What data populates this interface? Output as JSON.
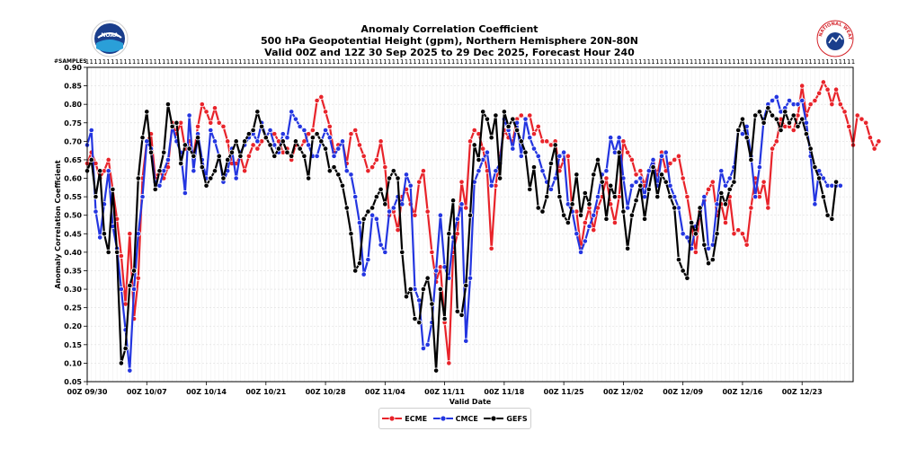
{
  "header": {
    "title_line1": "Anomaly Correlation Coefficient",
    "title_line2": "500 hPa Geopotential Height (gpm), Northern Hemisphere 20N-80N",
    "title_line3": "Valid 00Z and 12Z 30 Sep 2025 to 29 Dec 2025, Forecast Hour 240",
    "left_logo_text": "NOAA",
    "right_logo_text": "NATIONAL WEATHER SERVICE"
  },
  "chart_data": {
    "type": "line",
    "title": "Anomaly Correlation Coefficient",
    "xlabel": "Valid Date",
    "ylabel": "Anomaly Correlation Coefficient",
    "samples_label": "#SAMPLES",
    "samples_value": "1",
    "ylim": [
      0.05,
      0.9
    ],
    "yticks": [
      "0.05",
      "0.10",
      "0.15",
      "0.20",
      "0.25",
      "0.30",
      "0.35",
      "0.40",
      "0.45",
      "0.50",
      "0.55",
      "0.60",
      "0.65",
      "0.70",
      "0.75",
      "0.80",
      "0.85",
      "0.90"
    ],
    "xticks": [
      {
        "index": 0,
        "label": "00Z 09/30"
      },
      {
        "index": 14,
        "label": "00Z 10/07"
      },
      {
        "index": 28,
        "label": "00Z 10/14"
      },
      {
        "index": 42,
        "label": "00Z 10/21"
      },
      {
        "index": 56,
        "label": "00Z 10/28"
      },
      {
        "index": 70,
        "label": "00Z 11/04"
      },
      {
        "index": 84,
        "label": "00Z 11/11"
      },
      {
        "index": 98,
        "label": "00Z 11/18"
      },
      {
        "index": 112,
        "label": "00Z 11/25"
      },
      {
        "index": 126,
        "label": "00Z 12/02"
      },
      {
        "index": 140,
        "label": "00Z 12/09"
      },
      {
        "index": 154,
        "label": "00Z 12/16"
      },
      {
        "index": 168,
        "label": "00Z 12/23"
      }
    ],
    "n_points": 181,
    "grid": true,
    "legend_position": "bottom-center",
    "series": [
      {
        "name": "ECME",
        "color": "#e8232a",
        "values": [
          0.64,
          0.67,
          0.64,
          0.6,
          0.62,
          0.65,
          0.57,
          0.49,
          0.39,
          0.26,
          0.45,
          0.22,
          0.33,
          0.6,
          0.7,
          0.72,
          0.6,
          0.62,
          0.6,
          0.63,
          0.75,
          0.72,
          0.75,
          0.68,
          0.7,
          0.66,
          0.74,
          0.8,
          0.78,
          0.75,
          0.79,
          0.75,
          0.74,
          0.7,
          0.64,
          0.64,
          0.66,
          0.62,
          0.66,
          0.69,
          0.68,
          0.7,
          0.71,
          0.73,
          0.72,
          0.7,
          0.67,
          0.68,
          0.65,
          0.69,
          0.68,
          0.7,
          0.72,
          0.73,
          0.81,
          0.82,
          0.78,
          0.74,
          0.67,
          0.69,
          0.7,
          0.64,
          0.72,
          0.73,
          0.69,
          0.66,
          0.62,
          0.63,
          0.65,
          0.7,
          0.63,
          0.5,
          0.51,
          0.46,
          0.55,
          0.57,
          0.53,
          0.5,
          0.59,
          0.62,
          0.51,
          0.4,
          0.32,
          0.36,
          0.21,
          0.1,
          0.4,
          0.45,
          0.59,
          0.52,
          0.7,
          0.73,
          0.72,
          0.68,
          0.62,
          0.41,
          0.58,
          0.66,
          0.73,
          0.71,
          0.7,
          0.76,
          0.77,
          0.76,
          0.77,
          0.72,
          0.74,
          0.7,
          0.7,
          0.69,
          0.7,
          0.62,
          0.65,
          0.66,
          0.51,
          0.51,
          0.41,
          0.48,
          0.52,
          0.46,
          0.52,
          0.55,
          0.6,
          0.53,
          0.48,
          0.55,
          0.7,
          0.67,
          0.65,
          0.61,
          0.62,
          0.58,
          0.62,
          0.64,
          0.61,
          0.67,
          0.62,
          0.64,
          0.65,
          0.66,
          0.6,
          0.55,
          0.48,
          0.4,
          0.51,
          0.54,
          0.57,
          0.59,
          0.5,
          0.53,
          0.48,
          0.55,
          0.45,
          0.46,
          0.45,
          0.42,
          0.52,
          0.6,
          0.55,
          0.59,
          0.52,
          0.68,
          0.7,
          0.76,
          0.74,
          0.74,
          0.73,
          0.77,
          0.85,
          0.77,
          0.8,
          0.81,
          0.83,
          0.86,
          0.84,
          0.8,
          0.84,
          0.8,
          0.78,
          0.74,
          0.69,
          0.77,
          0.76,
          0.75,
          0.71,
          0.68,
          0.7
        ]
      },
      {
        "name": "CMCE",
        "color": "#2335e0",
        "values": [
          0.69,
          0.73,
          0.51,
          0.44,
          0.53,
          0.62,
          0.47,
          0.41,
          0.3,
          0.19,
          0.08,
          0.3,
          0.45,
          0.55,
          0.7,
          0.68,
          0.59,
          0.58,
          0.62,
          0.65,
          0.74,
          0.7,
          0.67,
          0.56,
          0.77,
          0.62,
          0.72,
          0.65,
          0.6,
          0.73,
          0.7,
          0.66,
          0.59,
          0.62,
          0.68,
          0.6,
          0.67,
          0.69,
          0.71,
          0.72,
          0.7,
          0.75,
          0.71,
          0.73,
          0.69,
          0.67,
          0.72,
          0.71,
          0.78,
          0.76,
          0.74,
          0.73,
          0.69,
          0.66,
          0.66,
          0.7,
          0.73,
          0.71,
          0.66,
          0.68,
          0.7,
          0.62,
          0.61,
          0.55,
          0.48,
          0.34,
          0.38,
          0.5,
          0.49,
          0.42,
          0.4,
          0.51,
          0.52,
          0.55,
          0.53,
          0.61,
          0.58,
          0.3,
          0.27,
          0.14,
          0.15,
          0.21,
          0.35,
          0.5,
          0.36,
          0.33,
          0.44,
          0.49,
          0.53,
          0.16,
          0.33,
          0.59,
          0.62,
          0.65,
          0.67,
          0.58,
          0.62,
          0.64,
          0.76,
          0.73,
          0.68,
          0.75,
          0.66,
          0.76,
          0.71,
          0.68,
          0.66,
          0.62,
          0.59,
          0.57,
          0.6,
          0.66,
          0.67,
          0.53,
          0.51,
          0.45,
          0.4,
          0.43,
          0.47,
          0.5,
          0.55,
          0.61,
          0.62,
          0.71,
          0.67,
          0.71,
          0.6,
          0.52,
          0.58,
          0.59,
          0.6,
          0.55,
          0.62,
          0.65,
          0.58,
          0.66,
          0.67,
          0.58,
          0.55,
          0.52,
          0.45,
          0.44,
          0.41,
          0.47,
          0.5,
          0.55,
          0.41,
          0.42,
          0.53,
          0.62,
          0.58,
          0.6,
          0.63,
          0.73,
          0.72,
          0.74,
          0.66,
          0.55,
          0.63,
          0.76,
          0.8,
          0.81,
          0.82,
          0.78,
          0.79,
          0.81,
          0.8,
          0.8,
          0.81,
          0.75,
          0.66,
          0.53,
          0.62,
          0.6,
          0.58,
          0.58,
          0.58,
          0.58
        ]
      },
      {
        "name": "GEFS",
        "color": "#000000",
        "values": [
          0.62,
          0.65,
          0.55,
          0.62,
          0.45,
          0.4,
          0.57,
          0.4,
          0.1,
          0.14,
          0.31,
          0.35,
          0.6,
          0.71,
          0.78,
          0.67,
          0.57,
          0.62,
          0.67,
          0.8,
          0.74,
          0.75,
          0.64,
          0.69,
          0.68,
          0.66,
          0.71,
          0.63,
          0.58,
          0.6,
          0.62,
          0.66,
          0.6,
          0.65,
          0.67,
          0.7,
          0.66,
          0.7,
          0.72,
          0.73,
          0.78,
          0.74,
          0.71,
          0.69,
          0.66,
          0.68,
          0.7,
          0.67,
          0.66,
          0.7,
          0.68,
          0.66,
          0.6,
          0.71,
          0.72,
          0.7,
          0.68,
          0.62,
          0.63,
          0.61,
          0.58,
          0.52,
          0.45,
          0.35,
          0.37,
          0.49,
          0.51,
          0.52,
          0.55,
          0.57,
          0.53,
          0.6,
          0.62,
          0.6,
          0.4,
          0.28,
          0.3,
          0.22,
          0.21,
          0.3,
          0.33,
          0.26,
          0.08,
          0.3,
          0.22,
          0.45,
          0.54,
          0.24,
          0.23,
          0.31,
          0.5,
          0.69,
          0.65,
          0.78,
          0.76,
          0.71,
          0.77,
          0.6,
          0.78,
          0.74,
          0.76,
          0.73,
          0.7,
          0.67,
          0.57,
          0.63,
          0.52,
          0.51,
          0.55,
          0.64,
          0.69,
          0.55,
          0.5,
          0.48,
          0.53,
          0.61,
          0.5,
          0.56,
          0.53,
          0.61,
          0.65,
          0.59,
          0.49,
          0.58,
          0.55,
          0.67,
          0.51,
          0.41,
          0.5,
          0.54,
          0.58,
          0.49,
          0.57,
          0.63,
          0.55,
          0.61,
          0.59,
          0.55,
          0.52,
          0.38,
          0.35,
          0.33,
          0.48,
          0.45,
          0.52,
          0.42,
          0.37,
          0.38,
          0.45,
          0.56,
          0.53,
          0.57,
          0.59,
          0.73,
          0.76,
          0.71,
          0.65,
          0.77,
          0.78,
          0.75,
          0.79,
          0.77,
          0.76,
          0.73,
          0.78,
          0.75,
          0.77,
          0.74,
          0.76,
          0.72,
          0.68,
          0.63,
          0.6,
          0.55,
          0.5,
          0.49,
          0.59
        ]
      }
    ]
  }
}
